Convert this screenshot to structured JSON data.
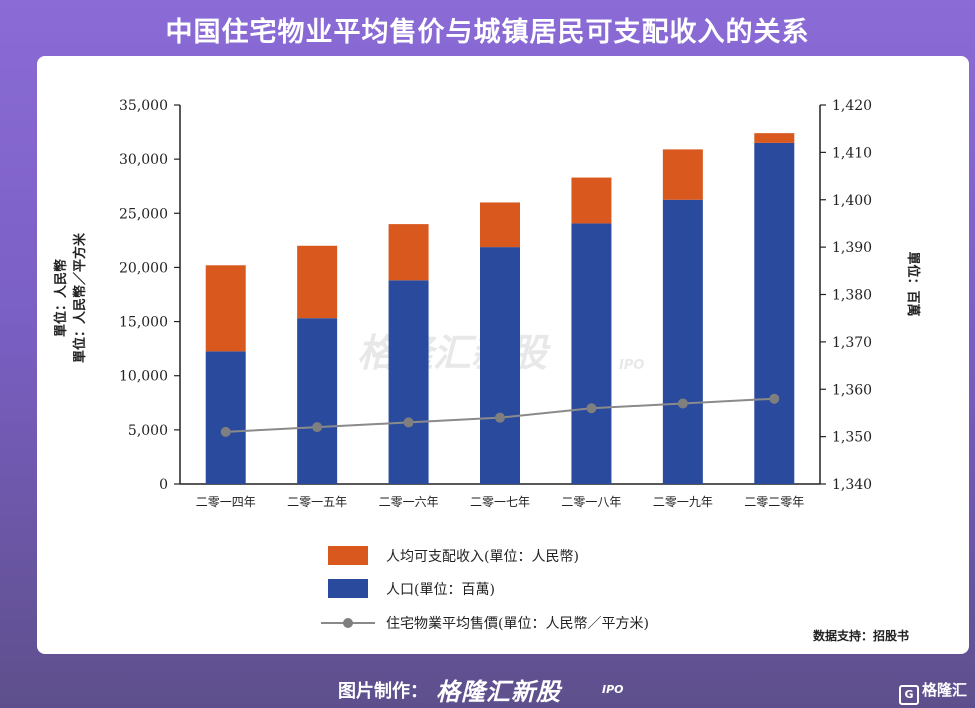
{
  "page": {
    "headline": "中国住宅物业平均售价与城镇居民可支配收入的关系",
    "credit": "数据支持：招股书",
    "footer_label": "图片制作：",
    "footer_brand": "格隆汇新股",
    "footer_brand_sub": "IPO",
    "watermark": "格隆汇新股",
    "watermark_sub": "IPO",
    "corner_logo": "格隆汇",
    "corner_logo_mark": "G"
  },
  "colors": {
    "population": "#2a4a9e",
    "income": "#d9581e",
    "price_line": "#8a8a8a",
    "price_marker": "#7f7f7f"
  },
  "chart_data": {
    "type": "bar",
    "stacked": true,
    "categories": [
      "二零一四年",
      "二零一五年",
      "二零一六年",
      "二零一七年",
      "二零一八年",
      "二零一九年",
      "二零二零年"
    ],
    "series": [
      {
        "name": "人口(單位：百萬)",
        "axis": "right",
        "values": [
          1368,
          1375,
          1383,
          1390,
          1395,
          1400,
          1412
        ],
        "color": "#2a4a9e"
      },
      {
        "name": "人均可支配收入(單位：人民幣)",
        "axis": "left",
        "segment_top_values": [
          20200,
          22000,
          24000,
          26000,
          28300,
          30900,
          32400
        ],
        "color": "#d9581e"
      },
      {
        "name": "住宅物業平均售價(單位：人民幣／平方米)",
        "type": "line",
        "axis": "right",
        "values": [
          1351,
          1352,
          1353,
          1354,
          1356,
          1357,
          1358
        ],
        "color": "#8a8a8a"
      }
    ],
    "left_axis": {
      "label_line1": "單位：人民幣",
      "label_line2": "單位：人民幣／平方米",
      "range": [
        0,
        35000
      ],
      "ticks": [
        "0",
        "5,000",
        "10,000",
        "15,000",
        "20,000",
        "25,000",
        "30,000",
        "35,000"
      ]
    },
    "right_axis": {
      "label": "單位：百萬",
      "range": [
        1340,
        1420
      ],
      "ticks": [
        "1,340",
        "1,350",
        "1,360",
        "1,370",
        "1,380",
        "1,390",
        "1,400",
        "1,410",
        "1,420"
      ]
    },
    "grid": false,
    "legend": "bottom-center"
  }
}
